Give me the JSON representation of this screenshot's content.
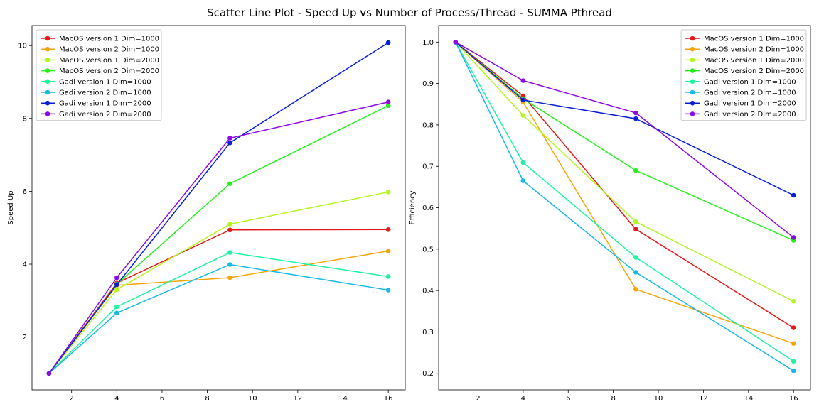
{
  "figure": {
    "title": "Scatter Line Plot - Speed Up vs Number of Process/Thread - SUMMA Pthread"
  },
  "chart_data": [
    {
      "type": "line",
      "title": "",
      "xlabel": "",
      "ylabel": "Speed Up",
      "xlim": [
        0.25,
        16.75
      ],
      "ylim": [
        0.55,
        10.55
      ],
      "xticks": [
        2,
        4,
        6,
        8,
        10,
        12,
        14,
        16
      ],
      "yticks": [
        2,
        4,
        6,
        8,
        10
      ],
      "grid": false,
      "legend_position": "top-left",
      "x": [
        1,
        4,
        9,
        16
      ],
      "series": [
        {
          "name": "MacOS version 1 Dim=1000",
          "color": "#e31a1c",
          "values": [
            1,
            3.48,
            4.94,
            4.95
          ]
        },
        {
          "name": "MacOS version 2 Dim=1000",
          "color": "#f5a50a",
          "values": [
            1,
            3.42,
            3.63,
            4.36
          ]
        },
        {
          "name": "MacOS version 1 Dim=2000",
          "color": "#b3f51c",
          "values": [
            1,
            3.3,
            5.1,
            5.98
          ]
        },
        {
          "name": "MacOS version 2 Dim=2000",
          "color": "#25f01c",
          "values": [
            1,
            3.45,
            6.21,
            8.35
          ]
        },
        {
          "name": "Gadi version 1 Dim=1000",
          "color": "#1cf5a0",
          "values": [
            1,
            2.83,
            4.32,
            3.66
          ]
        },
        {
          "name": "Gadi version 2 Dim=1000",
          "color": "#18b9e6",
          "values": [
            1,
            2.66,
            3.99,
            3.29
          ]
        },
        {
          "name": "Gadi version 1 Dim=2000",
          "color": "#0a1ed2",
          "values": [
            1,
            3.44,
            7.33,
            10.08
          ]
        },
        {
          "name": "Gadi version 2 Dim=2000",
          "color": "#8c0ae6",
          "values": [
            1,
            3.63,
            7.46,
            8.45
          ]
        }
      ]
    },
    {
      "type": "line",
      "title": "",
      "xlabel": "",
      "ylabel": "Efficiency",
      "xlim": [
        0.25,
        16.75
      ],
      "ylim": [
        0.16,
        1.04
      ],
      "xticks": [
        2,
        4,
        6,
        8,
        10,
        12,
        14,
        16
      ],
      "yticks": [
        0.2,
        0.3,
        0.4,
        0.5,
        0.6,
        0.7,
        0.8,
        0.9,
        1.0
      ],
      "grid": false,
      "legend_position": "top-right",
      "x": [
        1,
        4,
        9,
        16
      ],
      "series": [
        {
          "name": "MacOS version 1 Dim=1000",
          "color": "#e31a1c",
          "values": [
            1.0,
            0.87,
            0.548,
            0.31
          ]
        },
        {
          "name": "MacOS version 2 Dim=1000",
          "color": "#f5a50a",
          "values": [
            1.0,
            0.855,
            0.403,
            0.272
          ]
        },
        {
          "name": "MacOS version 1 Dim=2000",
          "color": "#b3f51c",
          "values": [
            1.0,
            0.823,
            0.566,
            0.374
          ]
        },
        {
          "name": "MacOS version 2 Dim=2000",
          "color": "#25f01c",
          "values": [
            1.0,
            0.863,
            0.69,
            0.521
          ]
        },
        {
          "name": "Gadi version 1 Dim=1000",
          "color": "#1cf5a0",
          "values": [
            1.0,
            0.709,
            0.48,
            0.229
          ]
        },
        {
          "name": "Gadi version 2 Dim=1000",
          "color": "#18b9e6",
          "values": [
            1.0,
            0.665,
            0.444,
            0.206
          ]
        },
        {
          "name": "Gadi version 1 Dim=2000",
          "color": "#0a1ed2",
          "values": [
            1.0,
            0.86,
            0.815,
            0.63
          ]
        },
        {
          "name": "Gadi version 2 Dim=2000",
          "color": "#8c0ae6",
          "values": [
            1.0,
            0.907,
            0.829,
            0.528
          ]
        }
      ]
    }
  ]
}
